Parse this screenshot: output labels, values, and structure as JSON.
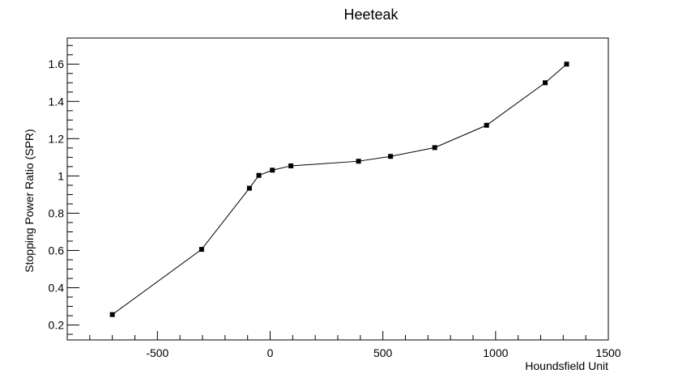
{
  "chart_data": {
    "type": "line",
    "title": "Heeteak",
    "xlabel": "Houndsfield Unit",
    "ylabel": "Stopping Power Ratio (SPR)",
    "xlim": [
      -900,
      1500
    ],
    "ylim": [
      0.12,
      1.74
    ],
    "xticks": [
      -500,
      0,
      500,
      1000,
      1500
    ],
    "xtick_labels": [
      "-500",
      "0",
      "500",
      "1000",
      "1500"
    ],
    "yticks": [
      0.2,
      0.4,
      0.6,
      0.8,
      1.0,
      1.2,
      1.4,
      1.6
    ],
    "ytick_labels": [
      "0.2",
      "0.4",
      "0.6",
      "0.8",
      "1",
      "1.2",
      "1.4",
      "1.6"
    ],
    "grid": false,
    "legend": "none",
    "series": [
      {
        "marker": "square",
        "color": "#000000",
        "x": [
          -700,
          -304,
          -92,
          -50,
          10,
          92,
          392,
          534,
          730,
          960,
          1220,
          1315
        ],
        "y": [
          0.256,
          0.606,
          0.934,
          1.003,
          1.031,
          1.054,
          1.079,
          1.105,
          1.152,
          1.272,
          1.5,
          1.6
        ]
      }
    ]
  }
}
